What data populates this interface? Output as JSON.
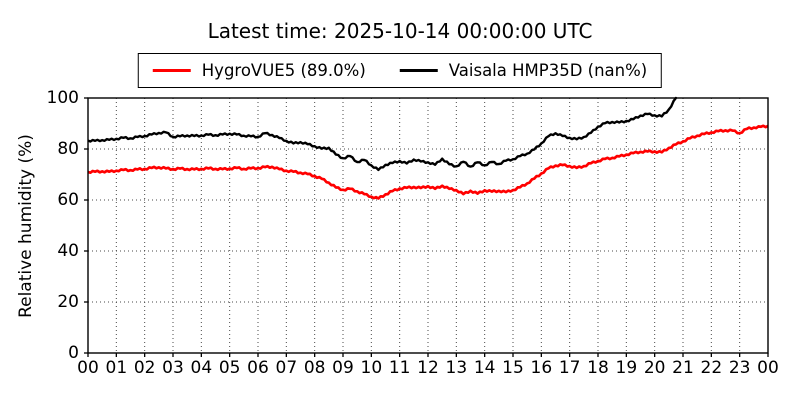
{
  "title": "Latest time: 2025-10-14 00:00:00 UTC",
  "legend": {
    "entries": [
      {
        "label": "HygroVUE5 (89.0%)",
        "color": "#ff0000"
      },
      {
        "label": "Vaisala HMP35D (nan%)",
        "color": "#000000"
      }
    ]
  },
  "chart_data": {
    "type": "line",
    "title": "Latest time: 2025-10-14 00:00:00 UTC",
    "xlabel": "",
    "ylabel": "Relative humidity (%)",
    "xlim": [
      0,
      24
    ],
    "ylim": [
      0,
      100
    ],
    "grid": "dotted",
    "legend_position": "top-center",
    "x_tick_labels": [
      "00",
      "01",
      "02",
      "03",
      "04",
      "05",
      "06",
      "07",
      "08",
      "09",
      "10",
      "11",
      "12",
      "13",
      "14",
      "15",
      "16",
      "17",
      "18",
      "19",
      "20",
      "21",
      "22",
      "23",
      "00"
    ],
    "y_ticks": [
      0,
      20,
      40,
      60,
      80,
      100
    ],
    "y_tick_labels": [
      "0",
      "20",
      "40",
      "60",
      "80",
      "100"
    ],
    "series": [
      {
        "name": "HygroVUE5 (89.0%)",
        "color": "#ff0000",
        "x": [
          0,
          0.25,
          0.5,
          0.75,
          1,
          1.25,
          1.5,
          1.75,
          2,
          2.25,
          2.5,
          2.75,
          3,
          3.25,
          3.5,
          3.75,
          4,
          4.25,
          4.5,
          4.75,
          5,
          5.25,
          5.5,
          5.75,
          6,
          6.25,
          6.5,
          6.75,
          7,
          7.25,
          7.5,
          7.75,
          8,
          8.25,
          8.5,
          8.75,
          9,
          9.25,
          9.5,
          9.75,
          10,
          10.25,
          10.5,
          10.75,
          11,
          11.25,
          11.5,
          11.75,
          12,
          12.25,
          12.5,
          12.75,
          13,
          13.25,
          13.5,
          13.75,
          14,
          14.25,
          14.5,
          14.75,
          15,
          15.25,
          15.5,
          15.75,
          16,
          16.25,
          16.5,
          16.75,
          17,
          17.25,
          17.5,
          17.75,
          18,
          18.25,
          18.5,
          18.75,
          19,
          19.25,
          19.5,
          19.75,
          20,
          20.25,
          20.5,
          20.75,
          21,
          21.25,
          21.5,
          21.75,
          22,
          22.25,
          22.5,
          22.75,
          23,
          23.25,
          23.5,
          23.75,
          24
        ],
        "y": [
          71.0,
          71.1,
          71.2,
          71.1,
          71.5,
          71.8,
          71.7,
          72.0,
          72.2,
          72.6,
          72.8,
          72.4,
          72.1,
          72.3,
          72.1,
          72.0,
          72.2,
          72.4,
          72.2,
          72.1,
          72.3,
          72.6,
          72.2,
          72.4,
          72.5,
          72.9,
          73.0,
          72.1,
          71.5,
          71.1,
          70.7,
          70.2,
          69.4,
          68.3,
          66.8,
          64.9,
          64.0,
          64.4,
          63.4,
          62.3,
          61.3,
          60.6,
          62.2,
          63.5,
          64.5,
          64.8,
          65.1,
          64.7,
          65.4,
          64.4,
          65.6,
          64.4,
          63.9,
          62.3,
          63.6,
          62.5,
          63.8,
          63.3,
          63.6,
          63.1,
          63.9,
          65.0,
          66.5,
          68.4,
          70.4,
          72.4,
          73.5,
          73.7,
          73.3,
          72.6,
          73.3,
          74.4,
          75.3,
          76.1,
          76.5,
          77.1,
          77.8,
          78.4,
          78.9,
          79.0,
          79.0,
          78.7,
          80.4,
          81.8,
          83.0,
          84.2,
          85.2,
          85.9,
          86.5,
          87.0,
          87.3,
          87.2,
          86.2,
          87.9,
          88.4,
          88.7,
          89.0
        ]
      },
      {
        "name": "Vaisala HMP35D (nan%)",
        "color": "#000000",
        "x": [
          0,
          0.25,
          0.5,
          0.75,
          1,
          1.25,
          1.5,
          1.75,
          2,
          2.25,
          2.5,
          2.75,
          3,
          3.25,
          3.5,
          3.75,
          4,
          4.25,
          4.5,
          4.75,
          5,
          5.25,
          5.5,
          5.75,
          6,
          6.25,
          6.5,
          6.75,
          7,
          7.25,
          7.5,
          7.75,
          8,
          8.25,
          8.5,
          8.75,
          9,
          9.25,
          9.5,
          9.75,
          10,
          10.25,
          10.5,
          10.75,
          11,
          11.25,
          11.5,
          11.75,
          12,
          12.25,
          12.5,
          12.75,
          13,
          13.25,
          13.5,
          13.75,
          14,
          14.25,
          14.5,
          14.75,
          15,
          15.25,
          15.5,
          15.75,
          16,
          16.25,
          16.5,
          16.75,
          17,
          17.25,
          17.5,
          17.75,
          18,
          18.25,
          18.5,
          18.75,
          19,
          19.25,
          19.5,
          19.75,
          20,
          20.25,
          20.5,
          20.75
        ],
        "y": [
          83.3,
          83.2,
          83.5,
          83.6,
          84.0,
          84.4,
          84.2,
          84.7,
          85.1,
          85.7,
          86.3,
          86.5,
          84.8,
          85.0,
          85.3,
          85.1,
          85.3,
          85.6,
          85.4,
          85.7,
          86.0,
          85.7,
          85.2,
          85.0,
          84.8,
          86.2,
          85.5,
          84.3,
          83.2,
          82.2,
          82.7,
          81.9,
          81.1,
          80.1,
          80.5,
          77.8,
          76.4,
          77.2,
          74.9,
          75.7,
          73.6,
          71.8,
          73.8,
          74.5,
          75.3,
          74.3,
          75.9,
          75.1,
          74.8,
          73.8,
          76.2,
          74.0,
          73.2,
          75.0,
          73.1,
          74.8,
          73.6,
          74.9,
          74.1,
          75.4,
          76.0,
          77.2,
          78.2,
          79.8,
          82.2,
          85.0,
          86.2,
          85.1,
          84.4,
          83.8,
          84.7,
          86.3,
          88.8,
          90.1,
          90.6,
          90.4,
          91.0,
          91.7,
          93.1,
          93.7,
          93.2,
          92.8,
          95.5,
          100.0
        ]
      }
    ]
  }
}
